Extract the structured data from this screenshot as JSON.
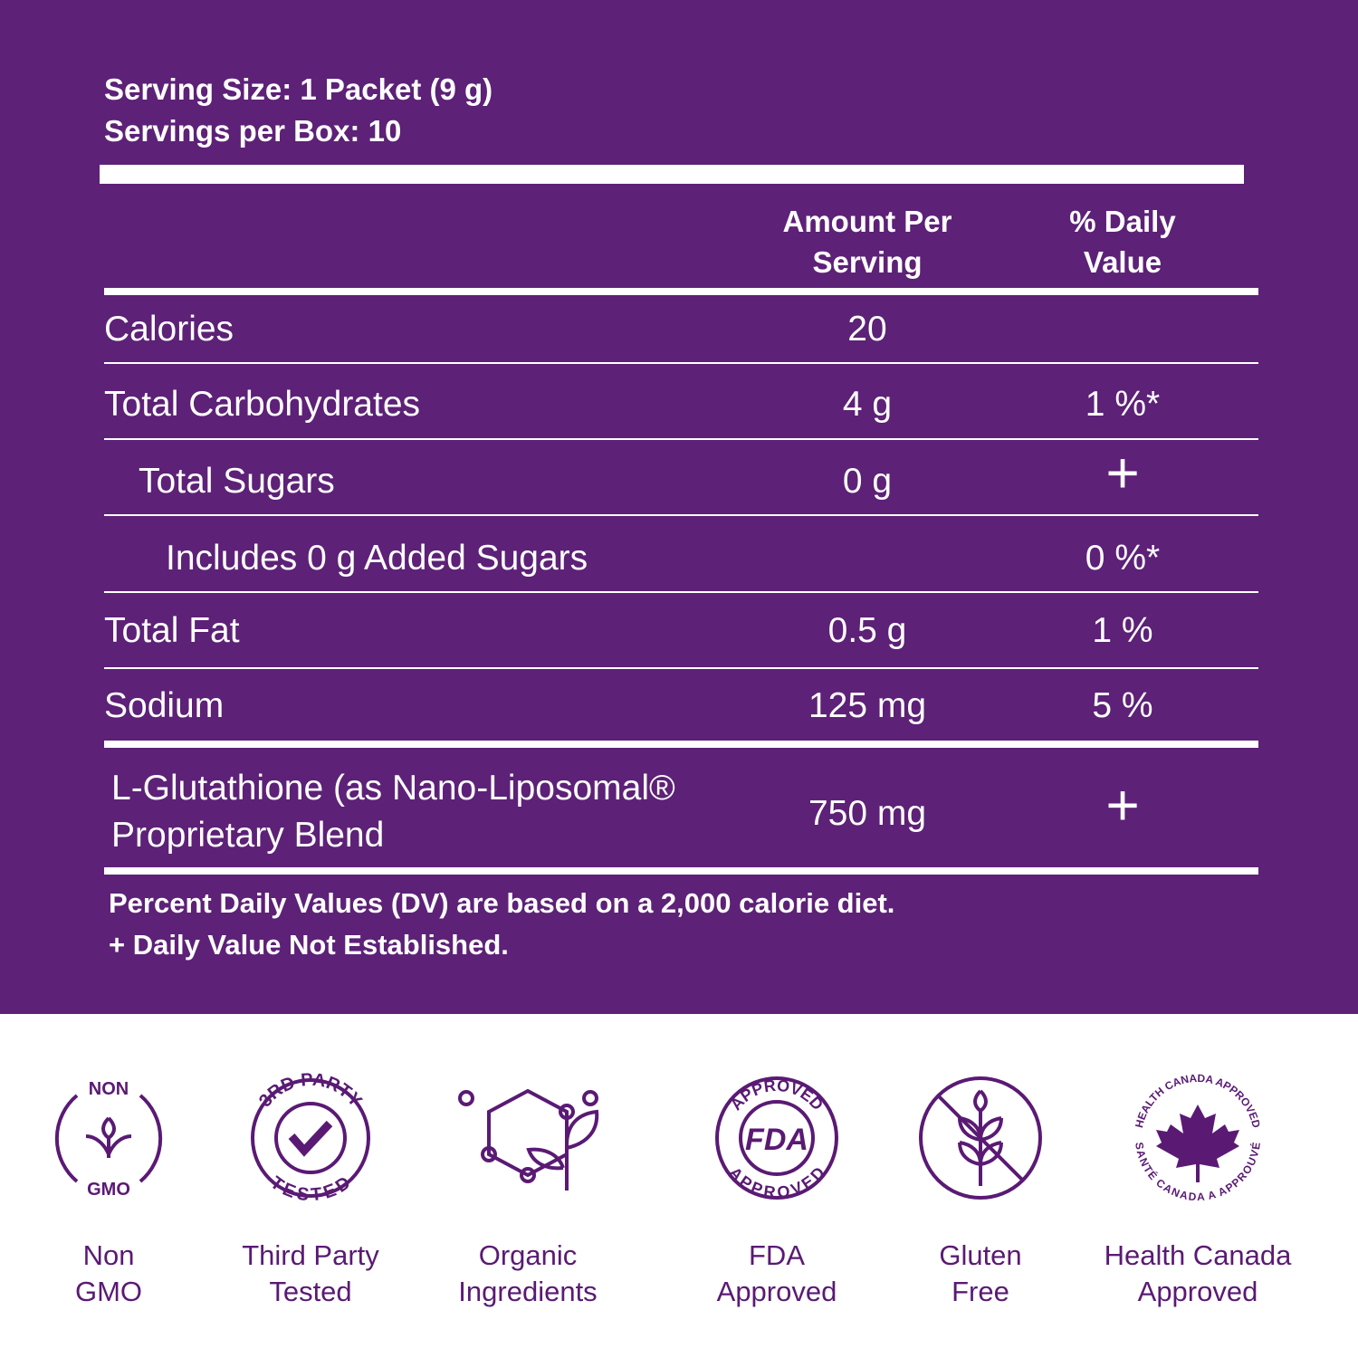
{
  "header": {
    "serving_size": "Serving Size: 1 Packet (9 g)",
    "servings_per_box": "Servings per Box: 10"
  },
  "table": {
    "columns": [
      "Amount Per Serving",
      "% Daily Value"
    ],
    "rows": [
      [
        "Calories",
        "20",
        null
      ],
      [
        "Total Carbohydrates",
        "4 g",
        "1 %*"
      ],
      [
        "Total Sugars",
        "0 g",
        "+"
      ],
      [
        "Includes 0 g Added Sugars",
        null,
        "0 %*"
      ],
      [
        "Total Fat",
        "0.5 g",
        "1 %"
      ],
      [
        "Sodium",
        "125 mg",
        "5 %"
      ],
      [
        "L-Glutathione (as Nano-Liposomal® Proprietary Blend",
        "750 mg",
        "+"
      ]
    ]
  },
  "footnotes": [
    "Percent Daily Values (DV) are based on a 2,000 calorie diet.",
    "+ Daily Value Not Established."
  ],
  "badges": [
    {
      "icon_text": [
        "NON",
        "GMO"
      ],
      "label": [
        "Non",
        "GMO"
      ]
    },
    {
      "icon_text": [
        "3RD PARTY",
        "TESTED"
      ],
      "label": [
        "Third Party",
        "Tested"
      ]
    },
    {
      "icon_text": [],
      "label": [
        "Organic",
        "Ingredients"
      ]
    },
    {
      "icon_text": [
        "APPROVED",
        "FDA",
        "APPROVED"
      ],
      "label": [
        "FDA",
        "Approved"
      ]
    },
    {
      "icon_text": [],
      "label": [
        "Gluten",
        "Free"
      ]
    },
    {
      "icon_text": [
        "HEALTH CANADA APPROVED",
        "SANTÉ CANADA A APPROUVÉ"
      ],
      "label": [
        "Health Canada",
        "Approved"
      ]
    }
  ]
}
